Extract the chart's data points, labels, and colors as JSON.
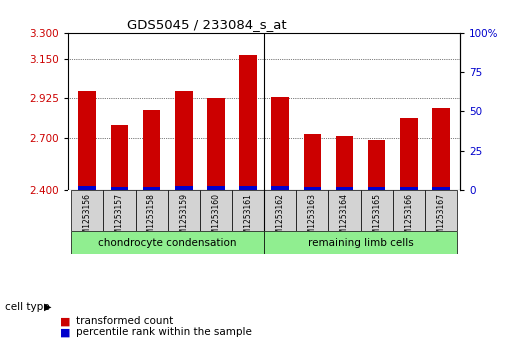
{
  "title": "GDS5045 / 233084_s_at",
  "samples": [
    "GSM1253156",
    "GSM1253157",
    "GSM1253158",
    "GSM1253159",
    "GSM1253160",
    "GSM1253161",
    "GSM1253162",
    "GSM1253163",
    "GSM1253164",
    "GSM1253165",
    "GSM1253166",
    "GSM1253167"
  ],
  "red_values": [
    2.965,
    2.77,
    2.855,
    2.965,
    2.925,
    3.175,
    2.93,
    2.72,
    2.71,
    2.685,
    2.81,
    2.87
  ],
  "blue_heights": [
    0.022,
    0.018,
    0.018,
    0.022,
    0.02,
    0.022,
    0.02,
    0.018,
    0.016,
    0.016,
    0.016,
    0.018
  ],
  "ylim": [
    2.4,
    3.3
  ],
  "yticks_left": [
    2.4,
    2.7,
    2.925,
    3.15,
    3.3
  ],
  "yticks_right": [
    0,
    25,
    50,
    75,
    100
  ],
  "groups": [
    {
      "label": "chondrocyte condensation",
      "start": 0,
      "end": 5,
      "color": "#90ee90"
    },
    {
      "label": "remaining limb cells",
      "start": 6,
      "end": 11,
      "color": "#90ee90"
    }
  ],
  "cell_type_label": "cell type",
  "legend_items": [
    {
      "color": "#cc0000",
      "label": "transformed count"
    },
    {
      "color": "#0000cc",
      "label": "percentile rank within the sample"
    }
  ],
  "bar_width": 0.55,
  "baseline": 2.4,
  "background_color": "#ffffff",
  "plot_bg": "#ffffff",
  "red_color": "#cc0000",
  "blue_color": "#0000cc",
  "tick_label_color_left": "#cc0000",
  "tick_label_color_right": "#0000cc",
  "separator_after": 5,
  "sample_bg": "#d3d3d3"
}
